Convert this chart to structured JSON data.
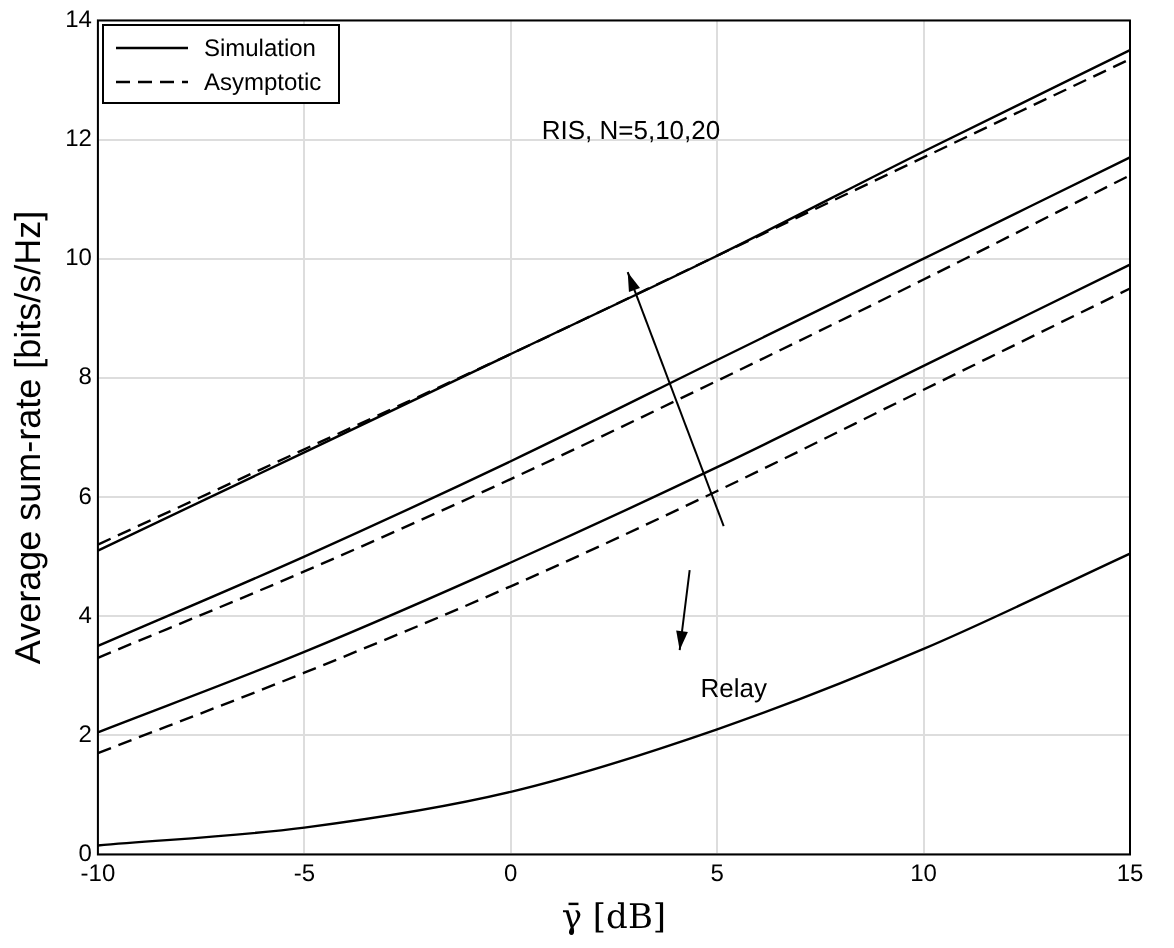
{
  "chart_data": {
    "type": "line",
    "xlabel": "γ̄ [dB]",
    "ylabel": "Average sum-rate [bits/s/Hz]",
    "x": [
      -10,
      -5,
      0,
      5,
      10,
      15
    ],
    "xlim": [
      -10,
      15
    ],
    "xticks": [
      -10,
      -5,
      0,
      5,
      10,
      15
    ],
    "ylim": [
      0,
      14
    ],
    "yticks": [
      0,
      2,
      4,
      6,
      8,
      10,
      12,
      14
    ],
    "grid": true,
    "legend": "top left",
    "marker": "none",
    "series": [
      {
        "name": "Simulation",
        "color": "#000000",
        "line_style": "solid",
        "values": [
          5.1,
          6.75,
          8.4,
          10.05,
          11.8,
          13.5
        ]
      },
      {
        "name": "Asymptotic",
        "color": "#000000",
        "line_style": "dashed",
        "values": [
          5.2,
          6.8,
          8.4,
          10.05,
          11.7,
          13.35
        ]
      },
      {
        "color": "#000000",
        "line_style": "solid",
        "values": [
          3.5,
          5.0,
          6.6,
          8.3,
          10.0,
          11.7
        ]
      },
      {
        "color": "#000000",
        "line_style": "dashed",
        "values": [
          3.3,
          4.75,
          6.3,
          7.95,
          9.65,
          11.4
        ]
      },
      {
        "color": "#000000",
        "line_style": "solid",
        "values": [
          2.05,
          3.4,
          4.9,
          6.5,
          8.2,
          9.9
        ]
      },
      {
        "color": "#000000",
        "line_style": "dashed",
        "values": [
          1.7,
          3.05,
          4.5,
          6.1,
          7.8,
          9.5
        ]
      },
      {
        "color": "#000000",
        "line_style": "solid",
        "values": [
          0.15,
          0.45,
          1.05,
          2.1,
          3.45,
          5.05
        ]
      }
    ],
    "annotations": [
      "RIS, N=5,10,20",
      "Relay"
    ]
  }
}
